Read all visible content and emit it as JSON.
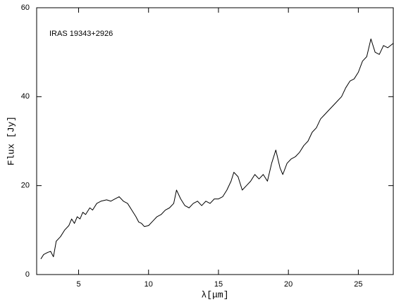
{
  "chart_data": {
    "type": "line",
    "annotation": "IRAS 19343+2926",
    "xlabel": "λ[μm]",
    "ylabel": "Flux [Jy]",
    "xlim": [
      2,
      27.5
    ],
    "xticks": [
      5,
      10,
      15,
      20,
      25
    ],
    "ylim": [
      0,
      60
    ],
    "yticks": [
      0,
      20,
      40,
      60
    ],
    "color": "#000000",
    "x": [
      2.3,
      2.5,
      2.8,
      3.0,
      3.2,
      3.4,
      3.7,
      4.0,
      4.3,
      4.5,
      4.7,
      4.9,
      5.1,
      5.3,
      5.5,
      5.8,
      6.0,
      6.3,
      6.6,
      7.0,
      7.3,
      7.6,
      7.9,
      8.2,
      8.5,
      8.8,
      9.1,
      9.3,
      9.5,
      9.7,
      10.0,
      10.3,
      10.6,
      10.9,
      11.2,
      11.5,
      11.8,
      12.0,
      12.3,
      12.6,
      12.9,
      13.2,
      13.5,
      13.8,
      14.1,
      14.4,
      14.7,
      15.0,
      15.3,
      15.6,
      15.9,
      16.1,
      16.4,
      16.7,
      17.0,
      17.3,
      17.6,
      17.9,
      18.2,
      18.5,
      18.8,
      19.1,
      19.4,
      19.6,
      19.9,
      20.2,
      20.5,
      20.8,
      21.1,
      21.4,
      21.7,
      22.0,
      22.3,
      22.6,
      22.9,
      23.2,
      23.5,
      23.8,
      24.1,
      24.4,
      24.7,
      25.0,
      25.3,
      25.6,
      25.9,
      26.2,
      26.5,
      26.8,
      27.1,
      27.5
    ],
    "values": [
      3.5,
      4.5,
      5,
      5.2,
      4.0,
      7.5,
      8.5,
      10,
      11,
      12.5,
      11.5,
      13,
      12.5,
      14,
      13.5,
      15,
      14.5,
      16,
      16.5,
      16.8,
      16.5,
      17,
      17.5,
      16.5,
      16,
      14.5,
      13,
      11.8,
      11.5,
      10.8,
      11,
      12,
      13,
      13.5,
      14.5,
      15,
      16,
      19,
      17,
      15.5,
      15,
      16,
      16.5,
      15.5,
      16.5,
      16,
      17,
      17,
      17.5,
      19,
      21,
      23,
      22,
      19,
      20,
      21,
      22.5,
      21.5,
      22.5,
      21,
      25,
      28,
      24,
      22.5,
      25,
      26,
      26.5,
      27.5,
      29,
      30,
      32,
      33,
      35,
      36,
      37,
      38,
      39,
      40,
      42,
      43.5,
      44,
      45.5,
      48,
      49,
      53,
      50,
      49.5,
      51.5,
      51,
      52
    ]
  }
}
